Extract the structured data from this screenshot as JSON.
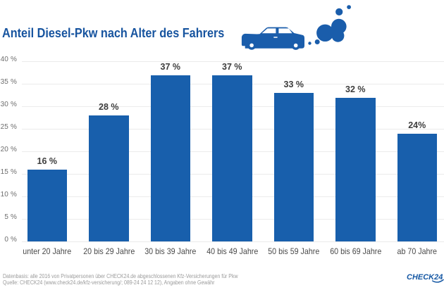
{
  "title": "Anteil Diesel-Pkw nach Alter des Fahrers",
  "icon": "car-with-exhaust-clouds",
  "chart_data": {
    "type": "bar",
    "title": "Anteil Diesel-Pkw nach Alter des Fahrers",
    "categories": [
      "unter 20 Jahre",
      "20 bis 29 Jahre",
      "30 bis 39 Jahre",
      "40 bis 49 Jahre",
      "50 bis 59 Jahre",
      "60 bis 69 Jahre",
      "ab 70 Jahre"
    ],
    "values": [
      16,
      28,
      37,
      37,
      33,
      32,
      24
    ],
    "value_labels": [
      "16 %",
      "28 %",
      "37 %",
      "37 %",
      "33 %",
      "32 %",
      "24%"
    ],
    "xlabel": "",
    "ylabel": "",
    "ylim": [
      0,
      40
    ],
    "yticks": [
      0,
      5,
      10,
      15,
      20,
      25,
      30,
      35,
      40
    ],
    "ytick_labels": [
      "0 %",
      "5 %",
      "10 %",
      "15 %",
      "20 %",
      "25 %",
      "30 %",
      "35 %",
      "40 %"
    ],
    "grid": "horizontal",
    "legend": "none"
  },
  "footer": {
    "line1": "Datenbasis: alle 2016 von Privatpersonen über CHECK24.de abgeschlossenen Kfz-Versicherungen für Pkw",
    "line2": "Quelle: CHECK24 (www.check24.de/kfz-versicherung/; 089-24 24 12 12), Angaben ohne Gewähr"
  },
  "logo": {
    "text": "CHECK24"
  },
  "colors": {
    "bar": "#185fac",
    "title": "#17549f",
    "icon": "#1a5dab",
    "grid": "#ebebeb",
    "value_label": "#3d3d3d",
    "x_label": "#4a4a4a",
    "y_label": "#6e6e6e",
    "footer": "#9b9b9b",
    "logo": "#1658a4"
  }
}
